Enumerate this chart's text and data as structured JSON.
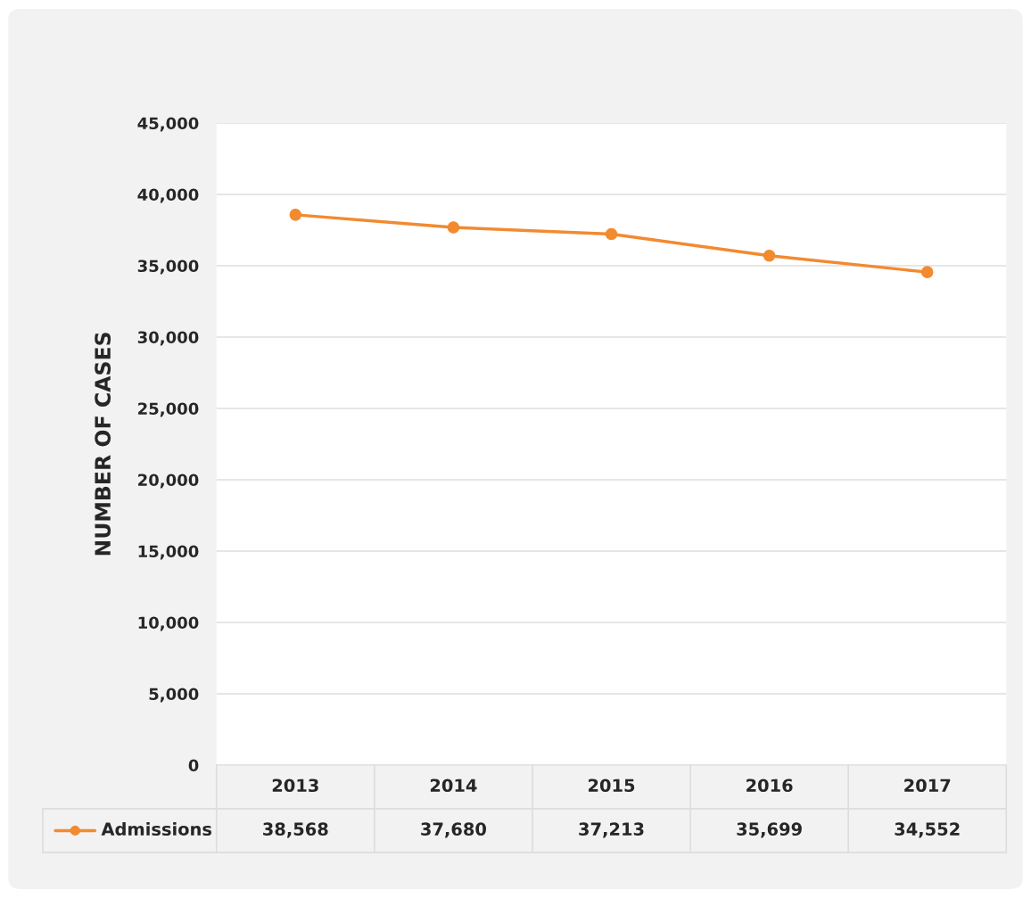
{
  "chart_data": {
    "type": "line",
    "ylabel": "NUMBER OF CASES",
    "categories": [
      "2013",
      "2014",
      "2015",
      "2016",
      "2017"
    ],
    "series": [
      {
        "name": "Admissions",
        "color": "#f28a30",
        "values": [
          38568,
          37680,
          37213,
          35699,
          34552
        ],
        "value_labels": [
          "38,568",
          "37,680",
          "37,213",
          "35,699",
          "34,552"
        ]
      }
    ],
    "ylim": [
      0,
      45000
    ],
    "yticks": [
      {
        "value": 0,
        "label": "0"
      },
      {
        "value": 5000,
        "label": "5,000"
      },
      {
        "value": 10000,
        "label": "10,000"
      },
      {
        "value": 15000,
        "label": "15,000"
      },
      {
        "value": 20000,
        "label": "20,000"
      },
      {
        "value": 25000,
        "label": "25,000"
      },
      {
        "value": 30000,
        "label": "30,000"
      },
      {
        "value": 35000,
        "label": "35,000"
      },
      {
        "value": 40000,
        "label": "40,000"
      },
      {
        "value": 45000,
        "label": "45,000"
      }
    ],
    "grid": "y",
    "marker": "circle",
    "line_style": "solid",
    "legend": "bottom left"
  }
}
